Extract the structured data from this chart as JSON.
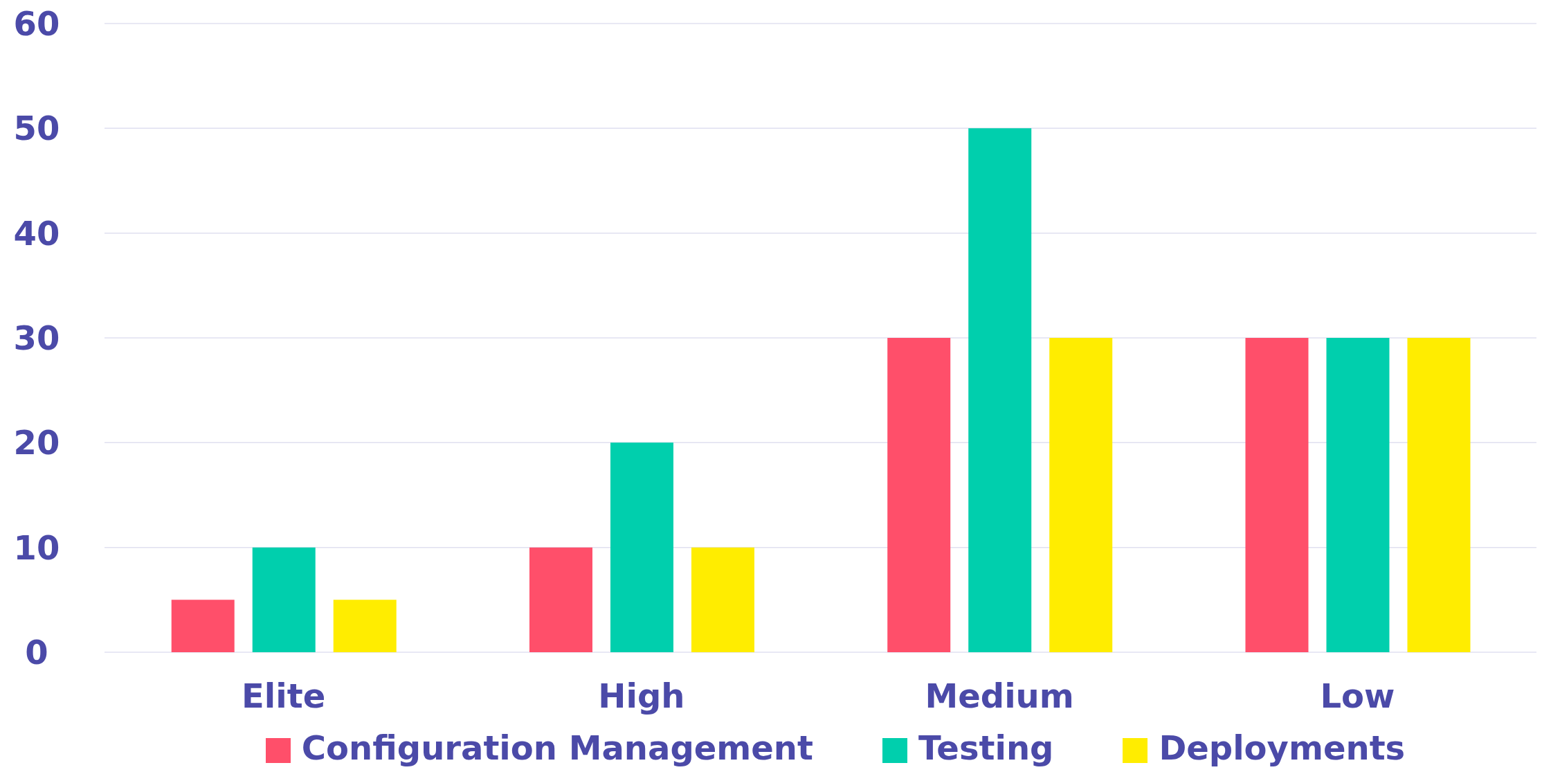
{
  "chart_data": {
    "type": "bar",
    "categories": [
      "Elite",
      "High",
      "Medium",
      "Low"
    ],
    "series": [
      {
        "name": "Configuration Management",
        "color": "#ff4f6a",
        "values": [
          5,
          10,
          30,
          30
        ]
      },
      {
        "name": "Testing",
        "color": "#00cfad",
        "values": [
          10,
          20,
          50,
          30
        ]
      },
      {
        "name": "Deployments",
        "color": "#ffed00",
        "values": [
          5,
          10,
          30,
          30
        ]
      }
    ],
    "ylim": [
      0,
      60
    ],
    "yticks": [
      0,
      10,
      20,
      30,
      40,
      50,
      60
    ],
    "grid": "y",
    "legend": "bottom"
  }
}
